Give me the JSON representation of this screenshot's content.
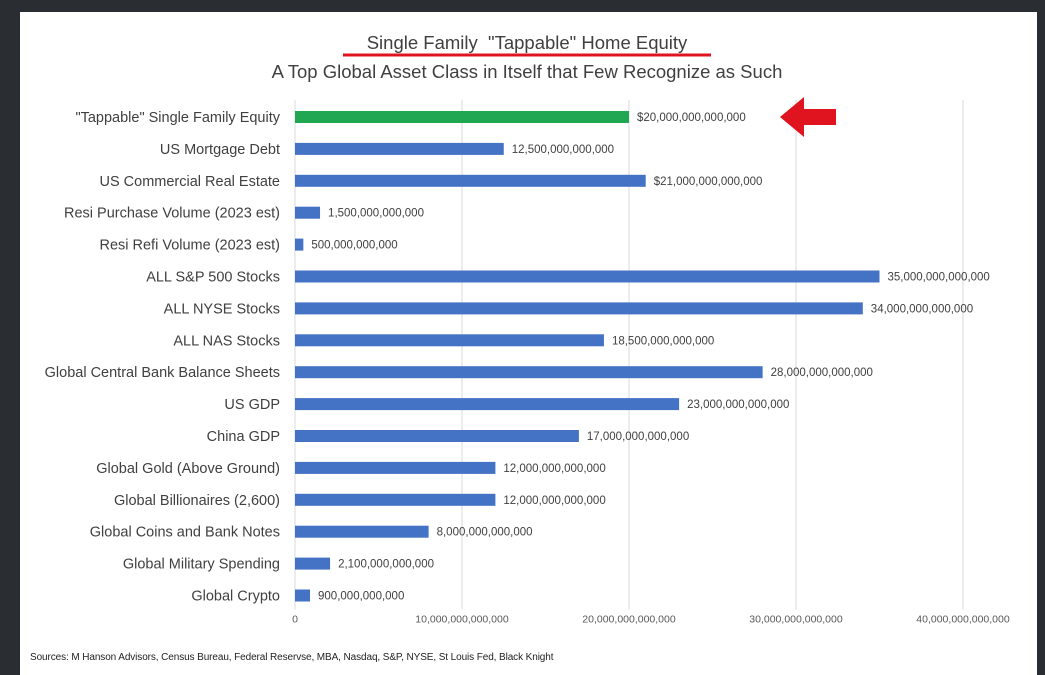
{
  "chart_data": {
    "type": "bar",
    "orientation": "horizontal",
    "title": "Single Family  \"Tappable\" Home Equity",
    "subtitle": "A Top Global Asset Class in Itself that Few Recognize as Such",
    "categories": [
      "\"Tappable\" Single Family Equity",
      "US Mortgage Debt",
      "US Commercial Real Estate",
      "Resi Purchase Volume (2023 est)",
      "Resi Refi Volume (2023 est)",
      "ALL S&P 500 Stocks",
      "ALL NYSE Stocks",
      "ALL NAS Stocks",
      "Global Central Bank Balance Sheets",
      "US GDP",
      "China GDP",
      "Global Gold (Above Ground)",
      "Global Billionaires (2,600)",
      "Global Coins and Bank Notes",
      "Global Military Spending",
      "Global Crypto"
    ],
    "values": [
      20000000000000,
      12500000000000,
      21000000000000,
      1500000000000,
      500000000000,
      35000000000000,
      34000000000000,
      18500000000000,
      28000000000000,
      23000000000000,
      17000000000000,
      12000000000000,
      12000000000000,
      8000000000000,
      2100000000000,
      900000000000
    ],
    "value_labels": [
      "$20,000,000,000,000",
      "12,500,000,000,000",
      "$21,000,000,000,000",
      "1,500,000,000,000",
      "500,000,000,000",
      "35,000,000,000,000",
      "34,000,000,000,000",
      "18,500,000,000,000",
      "28,000,000,000,000",
      "23,000,000,000,000",
      "17,000,000,000,000",
      "12,000,000,000,000",
      "12,000,000,000,000",
      "8,000,000,000,000",
      "2,100,000,000,000",
      "900,000,000,000"
    ],
    "bar_colors": [
      "#21a651",
      "#4472c4",
      "#4472c4",
      "#4472c4",
      "#4472c4",
      "#4472c4",
      "#4472c4",
      "#4472c4",
      "#4472c4",
      "#4472c4",
      "#4472c4",
      "#4472c4",
      "#4472c4",
      "#4472c4",
      "#4472c4",
      "#4472c4"
    ],
    "xlim": [
      0,
      40000000000000
    ],
    "xticks": [
      0,
      10000000000000,
      20000000000000,
      30000000000000,
      40000000000000
    ],
    "xtick_labels": [
      "0",
      "10,000,000,000,000",
      "20,000,000,000,000",
      "30,000,000,000,000",
      "40,000,000,000,000"
    ],
    "grid": true,
    "highlight_index": 0,
    "highlight_color": "#e0141e",
    "annotation": "red-arrow pointing at \"Tappable\" Single Family Equity"
  },
  "source_note": "Sources: M Hanson Advisors, Census Bureau, Federal Reservse, MBA, Nasdaq, S&P, NYSE, St Louis Fed, Black Knight"
}
